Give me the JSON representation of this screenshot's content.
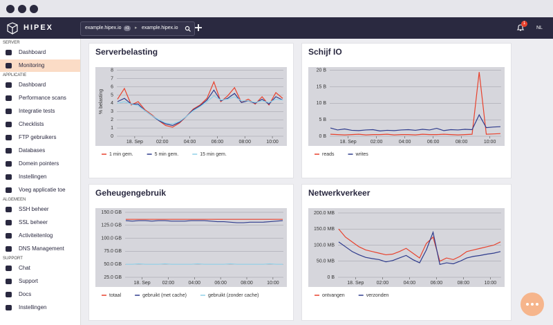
{
  "header": {
    "logo": "HIPEX",
    "breadcrumbs": [
      {
        "label": "example.hipex.io",
        "badge": "+1"
      },
      {
        "label": "example.hipex.io"
      }
    ],
    "notifications": 1,
    "language": "NL"
  },
  "sidebar": {
    "sections": [
      {
        "title": "SERVER",
        "items": [
          {
            "label": "Dashboard"
          },
          {
            "label": "Monitoring",
            "active": true
          }
        ]
      },
      {
        "title": "APPLICATIE",
        "items": [
          {
            "label": "Dashboard"
          },
          {
            "label": "Performance scans"
          },
          {
            "label": "Integratie tests"
          },
          {
            "label": "Checklists"
          },
          {
            "label": "FTP gebruikers"
          },
          {
            "label": "Databases"
          },
          {
            "label": "Domein pointers"
          },
          {
            "label": "Instellingen"
          },
          {
            "label": "Voeg applicatie toe"
          }
        ]
      },
      {
        "title": "ALGEMEEN",
        "items": [
          {
            "label": "SSH beheer"
          },
          {
            "label": "SSL beheer"
          },
          {
            "label": "Activiteitenlog"
          },
          {
            "label": "DNS Management"
          }
        ]
      },
      {
        "title": "SUPPORT",
        "items": [
          {
            "label": "Chat"
          },
          {
            "label": "Support"
          },
          {
            "label": "Docs"
          },
          {
            "label": "Instellingen"
          }
        ]
      }
    ]
  },
  "chart_data": [
    {
      "type": "line",
      "title": "Serverbelasting",
      "ylabel": "% belasting",
      "x": [
        -1.25,
        -0.75,
        -0.25,
        0.25,
        0.75,
        1.25,
        1.75,
        2.25,
        2.75,
        3.25,
        3.75,
        4.25,
        4.75,
        5.25,
        5.75,
        6.25,
        6.75,
        7.25,
        7.75,
        8.25,
        8.75,
        9.25,
        9.75,
        10.25,
        10.75
      ],
      "xlim": [
        -1.3,
        10.8
      ],
      "xticks": [
        {
          "value": 0,
          "label": "18. Sep"
        },
        {
          "value": 2,
          "label": "02:00"
        },
        {
          "value": 4,
          "label": "04:00"
        },
        {
          "value": 6,
          "label": "06:00"
        },
        {
          "value": 8,
          "label": "08:00"
        },
        {
          "value": 10,
          "label": "10:00"
        }
      ],
      "ylim": [
        0,
        8.4
      ],
      "yticks": [
        0,
        1,
        2,
        3,
        4,
        5,
        6,
        7,
        8
      ],
      "grid": true,
      "series": [
        {
          "name": "1 min gem.",
          "color": "#e8412c",
          "values": [
            4.5,
            5.8,
            3.8,
            4.2,
            3.2,
            2.6,
            1.9,
            1.3,
            1.1,
            1.6,
            2.4,
            3.3,
            3.8,
            4.6,
            6.6,
            4.2,
            4.9,
            5.9,
            4.1,
            4.5,
            3.9,
            4.8,
            3.8,
            5.3,
            4.6
          ]
        },
        {
          "name": "5 min gem.",
          "color": "#2d3a8c",
          "values": [
            4.2,
            4.6,
            3.9,
            3.9,
            3.1,
            2.5,
            1.9,
            1.5,
            1.3,
            1.7,
            2.4,
            3.2,
            3.7,
            4.4,
            5.6,
            4.3,
            4.6,
            5.2,
            4.1,
            4.3,
            4.0,
            4.5,
            3.9,
            4.8,
            4.4
          ]
        },
        {
          "name": "15 min gem.",
          "color": "#8fd0e8",
          "values": [
            4.0,
            4.2,
            3.9,
            3.7,
            3.1,
            2.5,
            2.0,
            1.6,
            1.5,
            1.8,
            2.4,
            3.1,
            3.6,
            4.2,
            4.9,
            4.4,
            4.5,
            4.8,
            4.3,
            4.3,
            4.1,
            4.3,
            4.1,
            4.5,
            4.4
          ]
        }
      ]
    },
    {
      "type": "line",
      "title": "Schijf IO",
      "x": [
        -1.25,
        -0.75,
        -0.25,
        0.25,
        0.75,
        1.25,
        1.75,
        2.25,
        2.75,
        3.25,
        3.75,
        4.25,
        4.75,
        5.25,
        5.75,
        6.25,
        6.75,
        7.25,
        7.75,
        8.25,
        8.75,
        9.25,
        9.75,
        10.25,
        10.75
      ],
      "xlim": [
        -1.3,
        10.8
      ],
      "xticks": [
        {
          "value": 0,
          "label": "18. Sep"
        },
        {
          "value": 2,
          "label": "02:00"
        },
        {
          "value": 4,
          "label": "04:00"
        },
        {
          "value": 6,
          "label": "06:00"
        },
        {
          "value": 8,
          "label": "08:00"
        },
        {
          "value": 10,
          "label": "10:00"
        }
      ],
      "ylim": [
        0,
        21
      ],
      "yticks": [
        {
          "value": 0,
          "label": "0 B"
        },
        {
          "value": 5,
          "label": "5 B"
        },
        {
          "value": 10,
          "label": "10 B"
        },
        {
          "value": 15,
          "label": "15 B"
        },
        {
          "value": 20,
          "label": "20 B"
        }
      ],
      "grid": true,
      "series": [
        {
          "name": "reads",
          "color": "#e8412c",
          "values": [
            0.6,
            0.5,
            0.4,
            0.5,
            0.6,
            0.4,
            0.5,
            0.5,
            0.6,
            0.4,
            0.5,
            0.5,
            0.4,
            0.6,
            0.5,
            0.5,
            0.6,
            0.5,
            0.4,
            0.5,
            0.6,
            19.5,
            0.6,
            0.7,
            0.8
          ]
        },
        {
          "name": "writes",
          "color": "#2d3a8c",
          "values": [
            2.5,
            1.9,
            2.2,
            1.8,
            1.7,
            1.9,
            2.0,
            1.6,
            1.8,
            1.7,
            1.9,
            2.0,
            1.8,
            2.1,
            1.9,
            2.4,
            1.7,
            2.0,
            1.9,
            2.1,
            2.0,
            6.5,
            2.6,
            2.8,
            2.9
          ]
        }
      ]
    },
    {
      "type": "line",
      "title": "Geheugengebruik",
      "x": [
        -1.25,
        -0.75,
        -0.25,
        0.25,
        0.75,
        1.25,
        1.75,
        2.25,
        2.75,
        3.25,
        3.75,
        4.25,
        4.75,
        5.25,
        5.75,
        6.25,
        6.75,
        7.25,
        7.75,
        8.25,
        8.75,
        9.25,
        9.75,
        10.25,
        10.75
      ],
      "xlim": [
        -1.3,
        10.8
      ],
      "xticks": [
        {
          "value": 0,
          "label": "18. Sep"
        },
        {
          "value": 2,
          "label": "02:00"
        },
        {
          "value": 4,
          "label": "04:00"
        },
        {
          "value": 6,
          "label": "06:00"
        },
        {
          "value": 8,
          "label": "08:00"
        },
        {
          "value": 10,
          "label": "10:00"
        }
      ],
      "ylim": [
        25,
        158
      ],
      "yticks": [
        {
          "value": 25,
          "label": "25.0 GB"
        },
        {
          "value": 50,
          "label": "50.0 GB"
        },
        {
          "value": 75,
          "label": "75.0 GB"
        },
        {
          "value": 100,
          "label": "100.0 GB"
        },
        {
          "value": 125,
          "label": "125.0 GB"
        },
        {
          "value": 150,
          "label": "150.0 GB"
        }
      ],
      "grid": true,
      "series": [
        {
          "name": "totaal",
          "color": "#e8412c",
          "values": [
            136.5,
            136.5,
            136.5,
            136.5,
            136.5,
            136.5,
            136.5,
            136.5,
            136.5,
            136.5,
            136.5,
            136.5,
            136.5,
            136.5,
            136.5,
            136.5,
            136.5,
            136.5,
            136.5,
            136.5,
            136.5,
            136.5,
            136.5,
            136.5,
            136.5
          ]
        },
        {
          "name": "gebruikt (met cache)",
          "color": "#2d3a8c",
          "values": [
            134,
            133,
            134,
            134,
            133,
            134,
            134,
            133,
            133,
            133,
            134,
            134,
            134,
            133,
            132,
            132,
            131,
            130,
            130,
            131,
            131,
            131,
            132,
            133,
            134
          ]
        },
        {
          "name": "gebruikt (zonder cache)",
          "color": "#8fd0e8",
          "values": [
            50,
            50,
            51,
            50,
            50,
            50,
            51,
            50,
            50,
            50,
            50,
            51,
            50,
            50,
            50,
            50,
            51,
            50,
            50,
            50,
            50,
            50,
            51,
            50,
            50
          ]
        }
      ]
    },
    {
      "type": "line",
      "title": "Netwerkverkeer",
      "x": [
        -1.25,
        -0.75,
        -0.25,
        0.25,
        0.75,
        1.25,
        1.75,
        2.25,
        2.75,
        3.25,
        3.75,
        4.25,
        4.75,
        5.25,
        5.75,
        6.25,
        6.75,
        7.25,
        7.75,
        8.25,
        8.75,
        9.25,
        9.75,
        10.25,
        10.75
      ],
      "xlim": [
        -1.3,
        10.8
      ],
      "xticks": [
        {
          "value": 0,
          "label": "18. Sep"
        },
        {
          "value": 2,
          "label": "02:00"
        },
        {
          "value": 4,
          "label": "04:00"
        },
        {
          "value": 6,
          "label": "06:00"
        },
        {
          "value": 8,
          "label": "08:00"
        },
        {
          "value": 10,
          "label": "10:00"
        }
      ],
      "ylim": [
        0,
        215
      ],
      "yticks": [
        {
          "value": 0,
          "label": "0 B"
        },
        {
          "value": 50,
          "label": "50.0 MB"
        },
        {
          "value": 100,
          "label": "100.0 MB"
        },
        {
          "value": 150,
          "label": "150.0 MB"
        },
        {
          "value": 200,
          "label": "200.0 MB"
        }
      ],
      "grid": true,
      "series": [
        {
          "name": "ontvangen",
          "color": "#e8412c",
          "values": [
            150,
            125,
            110,
            95,
            85,
            80,
            75,
            70,
            72,
            80,
            90,
            75,
            60,
            105,
            125,
            50,
            60,
            55,
            65,
            80,
            85,
            90,
            95,
            100,
            110
          ]
        },
        {
          "name": "verzonden",
          "color": "#2d3a8c",
          "values": [
            110,
            95,
            80,
            70,
            62,
            58,
            55,
            48,
            52,
            60,
            68,
            55,
            45,
            85,
            140,
            40,
            45,
            42,
            50,
            60,
            65,
            68,
            72,
            75,
            80
          ]
        }
      ]
    }
  ]
}
